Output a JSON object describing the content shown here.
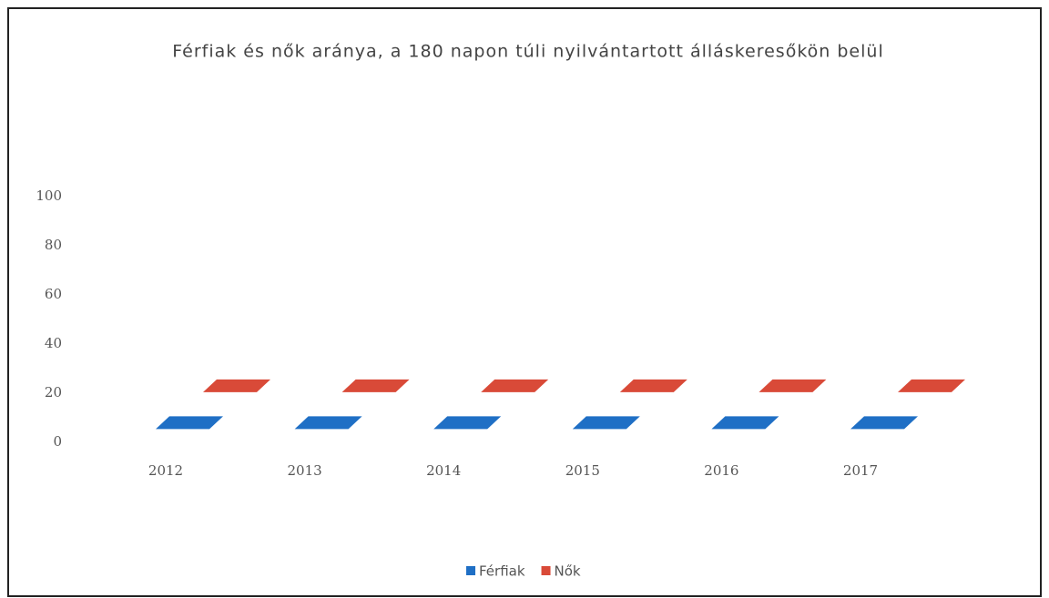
{
  "chart_data": {
    "type": "bar",
    "title": "Férfiak és nők aránya, a 180 napon túli nyilvántartott álláskeresőkön belül",
    "categories": [
      "2012",
      "2013",
      "2014",
      "2015",
      "2016",
      "2017"
    ],
    "series": [
      {
        "name": "Férfiak",
        "color": "#1f6fc5",
        "values": [
          8,
          8,
          8,
          8,
          8,
          8
        ]
      },
      {
        "name": "Nők",
        "color": "#d94a38",
        "values": [
          23,
          23,
          23,
          23,
          23,
          23
        ]
      }
    ],
    "ylim": [
      0,
      100
    ],
    "yticks": [
      0,
      20,
      40,
      60,
      80,
      100
    ],
    "legend": "bottom"
  }
}
